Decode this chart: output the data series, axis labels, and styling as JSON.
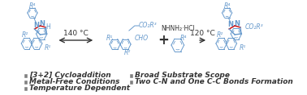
{
  "background_color": "#ffffff",
  "legend_items_left": [
    "[3+2] Cycloaddition",
    "Metal-Free Conditions",
    "Temperature Dependent"
  ],
  "legend_items_right": [
    "Broad Substrate Scope",
    "Two C-N and One C-C Bonds Formation"
  ],
  "arrow_label_left": "140 °C",
  "arrow_label_right": "120 °C",
  "plus_sign": "+",
  "reagent_label": "NHNH₂·HCl",
  "square_color": "#808080",
  "legend_text_color": "#333333",
  "structure_color": "#6699cc",
  "red_bond_color": "#cc0000",
  "font_size_legend": 6.5,
  "font_size_arrow": 7.0,
  "fig_width": 3.78,
  "fig_height": 1.18,
  "dpi": 100
}
